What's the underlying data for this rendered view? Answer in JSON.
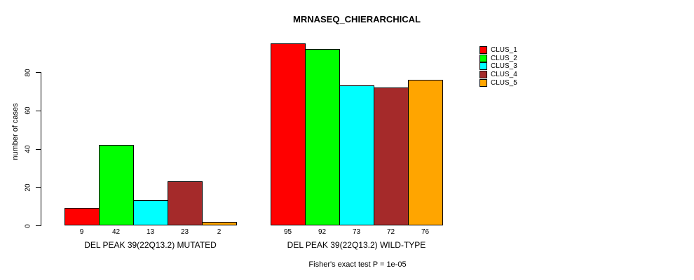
{
  "title": "MRNASEQ_CHIERARCHICAL",
  "footer": "Fisher's exact test P = 1e-05",
  "chart_data": {
    "type": "bar",
    "title": "MRNASEQ_CHIERARCHICAL",
    "xlabel": "",
    "ylabel": "number of cases",
    "ylim": [
      0,
      95
    ],
    "yticks": [
      0,
      20,
      40,
      60,
      80
    ],
    "grid": false,
    "legend_position": "right",
    "series_names": [
      "CLUS_1",
      "CLUS_2",
      "CLUS_3",
      "CLUS_4",
      "CLUS_5"
    ],
    "legend": [
      {
        "label": "CLUS_1",
        "color": "#FF0000"
      },
      {
        "label": "CLUS_2",
        "color": "#00FF00"
      },
      {
        "label": "CLUS_3",
        "color": "#00FFFF"
      },
      {
        "label": "CLUS_4",
        "color": "#A52A2A"
      },
      {
        "label": "CLUS_5",
        "color": "#FFA500"
      }
    ],
    "groups": [
      {
        "label": "DEL PEAK 39(22Q13.2) MUTATED",
        "values": [
          9,
          42,
          13,
          23,
          2
        ],
        "value_labels": [
          "9",
          "42",
          "13",
          "23",
          "2"
        ]
      },
      {
        "label": "DEL PEAK 39(22Q13.2) WILD-TYPE",
        "values": [
          95,
          92,
          73,
          72,
          76
        ],
        "value_labels": [
          "95",
          "92",
          "73",
          "72",
          "76"
        ]
      }
    ],
    "annotation": "Fisher's exact test P = 1e-05"
  }
}
